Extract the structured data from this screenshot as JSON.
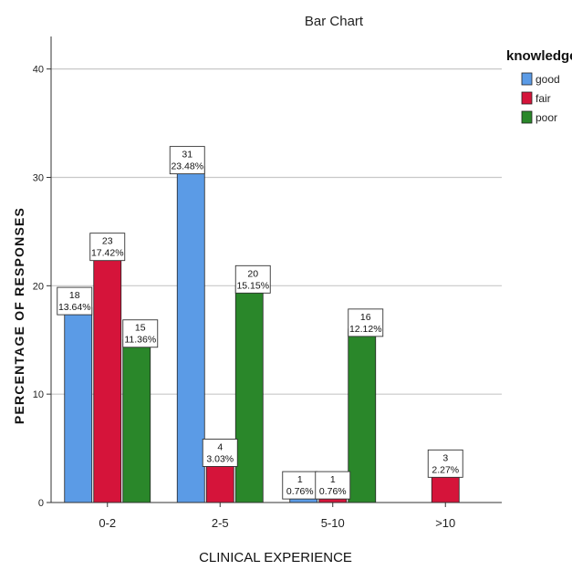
{
  "chart_data": {
    "type": "bar",
    "title": "Bar Chart",
    "xlabel": "CLINICAL EXPERIENCE",
    "ylabel": "PERCENTAGE OF RESPONSES",
    "ylim": [
      0,
      43
    ],
    "yticks": [
      0,
      10,
      20,
      30,
      40
    ],
    "grid": true,
    "legend_title": "knowledge",
    "legend_position": "top-right",
    "categories": [
      "0-2",
      "2-5",
      "5-10",
      ">10"
    ],
    "series": [
      {
        "name": "good",
        "color": "#5b9be6",
        "values": [
          18,
          31,
          1,
          0
        ],
        "labels": [
          "18",
          "31",
          "1",
          ""
        ],
        "pct": [
          "13.64%",
          "23.48%",
          "0.76%",
          ""
        ]
      },
      {
        "name": "fair",
        "color": "#d5143a",
        "values": [
          23,
          4,
          1,
          3
        ],
        "labels": [
          "23",
          "4",
          "1",
          "3"
        ],
        "pct": [
          "17.42%",
          "3.03%",
          "0.76%",
          "2.27%"
        ]
      },
      {
        "name": "poor",
        "color": "#2a872a",
        "values": [
          15,
          20,
          16,
          0
        ],
        "labels": [
          "15",
          "20",
          "16",
          ""
        ],
        "pct": [
          "11.36%",
          "15.15%",
          "12.12%",
          ""
        ]
      }
    ]
  }
}
